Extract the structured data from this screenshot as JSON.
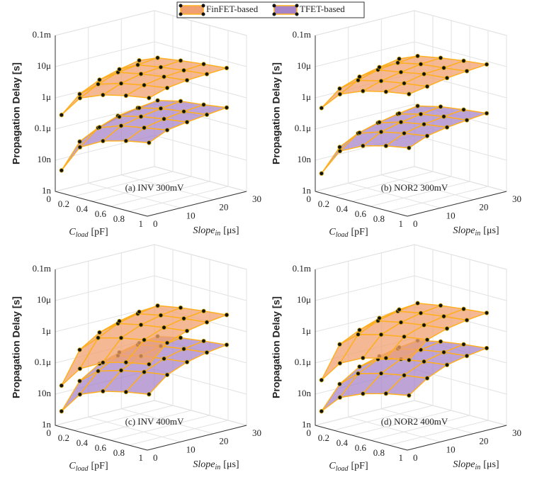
{
  "chart_data": [
    {
      "type": "surface3d",
      "label": "(a) INV 300mV",
      "xlabel": {
        "text": "C",
        "sub": "load",
        "unit": "[pF]"
      },
      "ylabel": {
        "text": "Slope",
        "sub": "in",
        "unit": "[μs]"
      },
      "zlabel": "Propagation Delay [s]",
      "x": [
        0.05,
        0.25,
        0.5,
        0.75,
        1
      ],
      "y": [
        0.5,
        6,
        12,
        18,
        24
      ],
      "xlim": [
        0,
        1
      ],
      "ylim": [
        0,
        30
      ],
      "zlim": [
        1e-09,
        0.0001
      ],
      "zscale": "log",
      "xticks": [
        0,
        0.2,
        0.4,
        0.6,
        0.8,
        1
      ],
      "yticks": [
        0,
        10,
        20,
        30
      ],
      "zticks": [
        {
          "value": 1e-09,
          "label": "1n"
        },
        {
          "value": 1e-08,
          "label": "10n"
        },
        {
          "value": 1e-07,
          "label": "0.1μ"
        },
        {
          "value": 1e-06,
          "label": "1μ"
        },
        {
          "value": 1e-05,
          "label": "10μ"
        },
        {
          "value": 0.0001,
          "label": "0.1m"
        }
      ],
      "grid": true,
      "series": [
        {
          "name": "FinFET-based",
          "color": "#f0a070",
          "z": [
            [
              3e-07,
              1.5e-06,
              3e-06,
              4.5e-06,
              6e-06
            ],
            [
              1e-06,
              3e-06,
              5e-06,
              7e-06,
              9e-06
            ],
            [
              2e-06,
              5e-06,
              7e-06,
              9e-06,
              1.1e-05
            ],
            [
              3e-06,
              6e-06,
              8e-06,
              1e-05,
              1.2e-05
            ],
            [
              4e-06,
              7e-06,
              9e-06,
              1.1e-05,
              1.3e-05
            ]
          ]
        },
        {
          "name": "TFET-based",
          "color": "#a784c8",
          "z": [
            [
              5e-09,
              4e-08,
              1e-07,
              1.6e-07,
              2.2e-07
            ],
            [
              3e-08,
              1.2e-07,
              2.2e-07,
              3e-07,
              4e-07
            ],
            [
              6e-08,
              2e-07,
              3e-07,
              4e-07,
              5e-07
            ],
            [
              9e-08,
              2.5e-07,
              3.8e-07,
              4.8e-07,
              6e-07
            ],
            [
              1.2e-07,
              3e-07,
              4.5e-07,
              5.5e-07,
              7e-07
            ]
          ]
        }
      ]
    },
    {
      "type": "surface3d",
      "label": "(b) NOR2 300mV",
      "xlabel": {
        "text": "C",
        "sub": "load",
        "unit": "[pF]"
      },
      "ylabel": {
        "text": "Slope",
        "sub": "in",
        "unit": "[μs]"
      },
      "zlabel": "Propagation Delay [s]",
      "x": [
        0.05,
        0.25,
        0.5,
        0.75,
        1
      ],
      "y": [
        0.5,
        6,
        12,
        18,
        24
      ],
      "xlim": [
        0,
        1
      ],
      "ylim": [
        0,
        30
      ],
      "zlim": [
        1e-09,
        0.0001
      ],
      "zscale": "log",
      "xticks": [
        0,
        0.2,
        0.4,
        0.6,
        0.8,
        1
      ],
      "yticks": [
        0,
        10,
        20,
        30
      ],
      "zticks": [
        {
          "value": 1e-09,
          "label": "1n"
        },
        {
          "value": 1e-08,
          "label": "10n"
        },
        {
          "value": 1e-07,
          "label": "0.1μ"
        },
        {
          "value": 1e-06,
          "label": "1μ"
        },
        {
          "value": 1e-05,
          "label": "10μ"
        },
        {
          "value": 0.0001,
          "label": "0.1m"
        }
      ],
      "grid": true,
      "series": [
        {
          "color": "#f0a070",
          "z": [
            [
              5e-07,
              2e-06,
              4e-06,
              6e-06,
              8e-06
            ],
            [
              1.5e-06,
              4e-06,
              6e-06,
              8e-06,
              1e-05
            ],
            [
              2.5e-06,
              6e-06,
              8e-06,
              1.1e-05,
              1.3e-05
            ],
            [
              3.5e-06,
              7e-06,
              1e-05,
              1.2e-05,
              1.5e-05
            ],
            [
              4.5e-06,
              8e-06,
              1.1e-05,
              1.4e-05,
              1.7e-05
            ]
          ]
        },
        {
          "color": "#a784c8",
          "z": [
            [
              4e-09,
              3e-08,
              7e-08,
              1.1e-07,
              1.5e-07
            ],
            [
              2e-08,
              8e-08,
              1.4e-07,
              2e-07,
              2.6e-07
            ],
            [
              4e-08,
              1.2e-07,
              2e-07,
              2.7e-07,
              3.4e-07
            ],
            [
              6e-08,
              1.6e-07,
              2.5e-07,
              3.3e-07,
              4e-07
            ],
            [
              8e-08,
              2e-07,
              3e-07,
              3.8e-07,
              4.6e-07
            ]
          ]
        }
      ]
    },
    {
      "type": "surface3d",
      "label": "(c) INV 400mV",
      "xlabel": {
        "text": "C",
        "sub": "load",
        "unit": "[pF]"
      },
      "ylabel": {
        "text": "Slope",
        "sub": "in",
        "unit": "[μs]"
      },
      "zlabel": "Propagation Delay [s]",
      "x": [
        0.05,
        0.25,
        0.5,
        0.75,
        1
      ],
      "y": [
        0.5,
        6,
        12,
        18,
        24
      ],
      "xlim": [
        0,
        1
      ],
      "ylim": [
        0,
        30
      ],
      "zlim": [
        1e-09,
        0.0001
      ],
      "zscale": "log",
      "xticks": [
        0,
        0.2,
        0.4,
        0.6,
        0.8,
        1
      ],
      "yticks": [
        0,
        10,
        20,
        30
      ],
      "zticks": [
        {
          "value": 1e-09,
          "label": "1n"
        },
        {
          "value": 1e-08,
          "label": "10n"
        },
        {
          "value": 1e-07,
          "label": "0.1μ"
        },
        {
          "value": 1e-06,
          "label": "1μ"
        },
        {
          "value": 1e-05,
          "label": "10μ"
        },
        {
          "value": 0.0001,
          "label": "0.1m"
        }
      ],
      "grid": true,
      "series": [
        {
          "color": "#f0a070",
          "z": [
            [
              2e-08,
              1e-07,
              2.5e-07,
              4e-07,
              5.5e-07
            ],
            [
              2e-07,
              7e-07,
              1.1e-06,
              1.5e-06,
              1.9e-06
            ],
            [
              5e-07,
              1.4e-06,
              2e-06,
              2.6e-06,
              3.2e-06
            ],
            [
              8e-07,
              2e-06,
              2.8e-06,
              3.5e-06,
              4.2e-06
            ],
            [
              1.1e-06,
              2.5e-06,
              3.4e-06,
              4.2e-06,
              5e-06
            ]
          ]
        },
        {
          "color": "#a784c8",
          "z": [
            [
              3e-09,
              1.5e-08,
              3e-08,
              4.5e-08,
              6e-08
            ],
            [
              2e-08,
              6e-08,
              1e-07,
              1.4e-07,
              1.8e-07
            ],
            [
              5e-08,
              1.3e-07,
              2e-07,
              2.6e-07,
              3.2e-07
            ],
            [
              8e-08,
              2e-07,
              2.9e-07,
              3.7e-07,
              4.5e-07
            ],
            [
              1.1e-07,
              2.6e-07,
              3.7e-07,
              4.6e-07,
              5.5e-07
            ]
          ]
        }
      ]
    },
    {
      "type": "surface3d",
      "label": "(d) NOR2 400mV",
      "xlabel": {
        "text": "C",
        "sub": "load",
        "unit": "[pF]"
      },
      "ylabel": {
        "text": "Slope",
        "sub": "in",
        "unit": "[μs]"
      },
      "zlabel": "Propagation Delay [s]",
      "x": [
        0.05,
        0.25,
        0.5,
        0.75,
        1
      ],
      "y": [
        0.5,
        6,
        12,
        18,
        24
      ],
      "xlim": [
        0,
        1
      ],
      "ylim": [
        0,
        30
      ],
      "zlim": [
        1e-09,
        0.0001
      ],
      "zscale": "log",
      "xticks": [
        0,
        0.2,
        0.4,
        0.6,
        0.8,
        1
      ],
      "yticks": [
        0,
        10,
        20,
        30
      ],
      "zticks": [
        {
          "value": 1e-09,
          "label": "1n"
        },
        {
          "value": 1e-08,
          "label": "10n"
        },
        {
          "value": 1e-07,
          "label": "0.1μ"
        },
        {
          "value": 1e-06,
          "label": "1μ"
        },
        {
          "value": 1e-05,
          "label": "10μ"
        },
        {
          "value": 0.0001,
          "label": "0.1m"
        }
      ],
      "grid": true,
      "series": [
        {
          "color": "#f0a070",
          "z": [
            [
              3e-08,
              1.5e-07,
              3.5e-07,
              5.5e-07,
              7.5e-07
            ],
            [
              3e-07,
              9e-07,
              1.4e-06,
              1.9e-06,
              2.4e-06
            ],
            [
              6e-07,
              1.7e-06,
              2.4e-06,
              3.1e-06,
              3.8e-06
            ],
            [
              1e-06,
              2.4e-06,
              3.3e-06,
              4.1e-06,
              4.9e-06
            ],
            [
              1.3e-06,
              3e-06,
              4e-06,
              4.9e-06,
              5.8e-06
            ]
          ]
        },
        {
          "color": "#a784c8",
          "z": [
            [
              3e-09,
              1.2e-08,
              2.5e-08,
              4e-08,
              5.5e-08
            ],
            [
              1.6e-08,
              5e-08,
              8e-08,
              1.1e-07,
              1.4e-07
            ],
            [
              4e-08,
              1e-07,
              1.6e-07,
              2.1e-07,
              2.6e-07
            ],
            [
              6e-08,
              1.5e-07,
              2.2e-07,
              2.9e-07,
              3.5e-07
            ],
            [
              8e-08,
              1.9e-07,
              2.8e-07,
              3.6e-07,
              4.3e-07
            ]
          ]
        }
      ]
    }
  ]
}
